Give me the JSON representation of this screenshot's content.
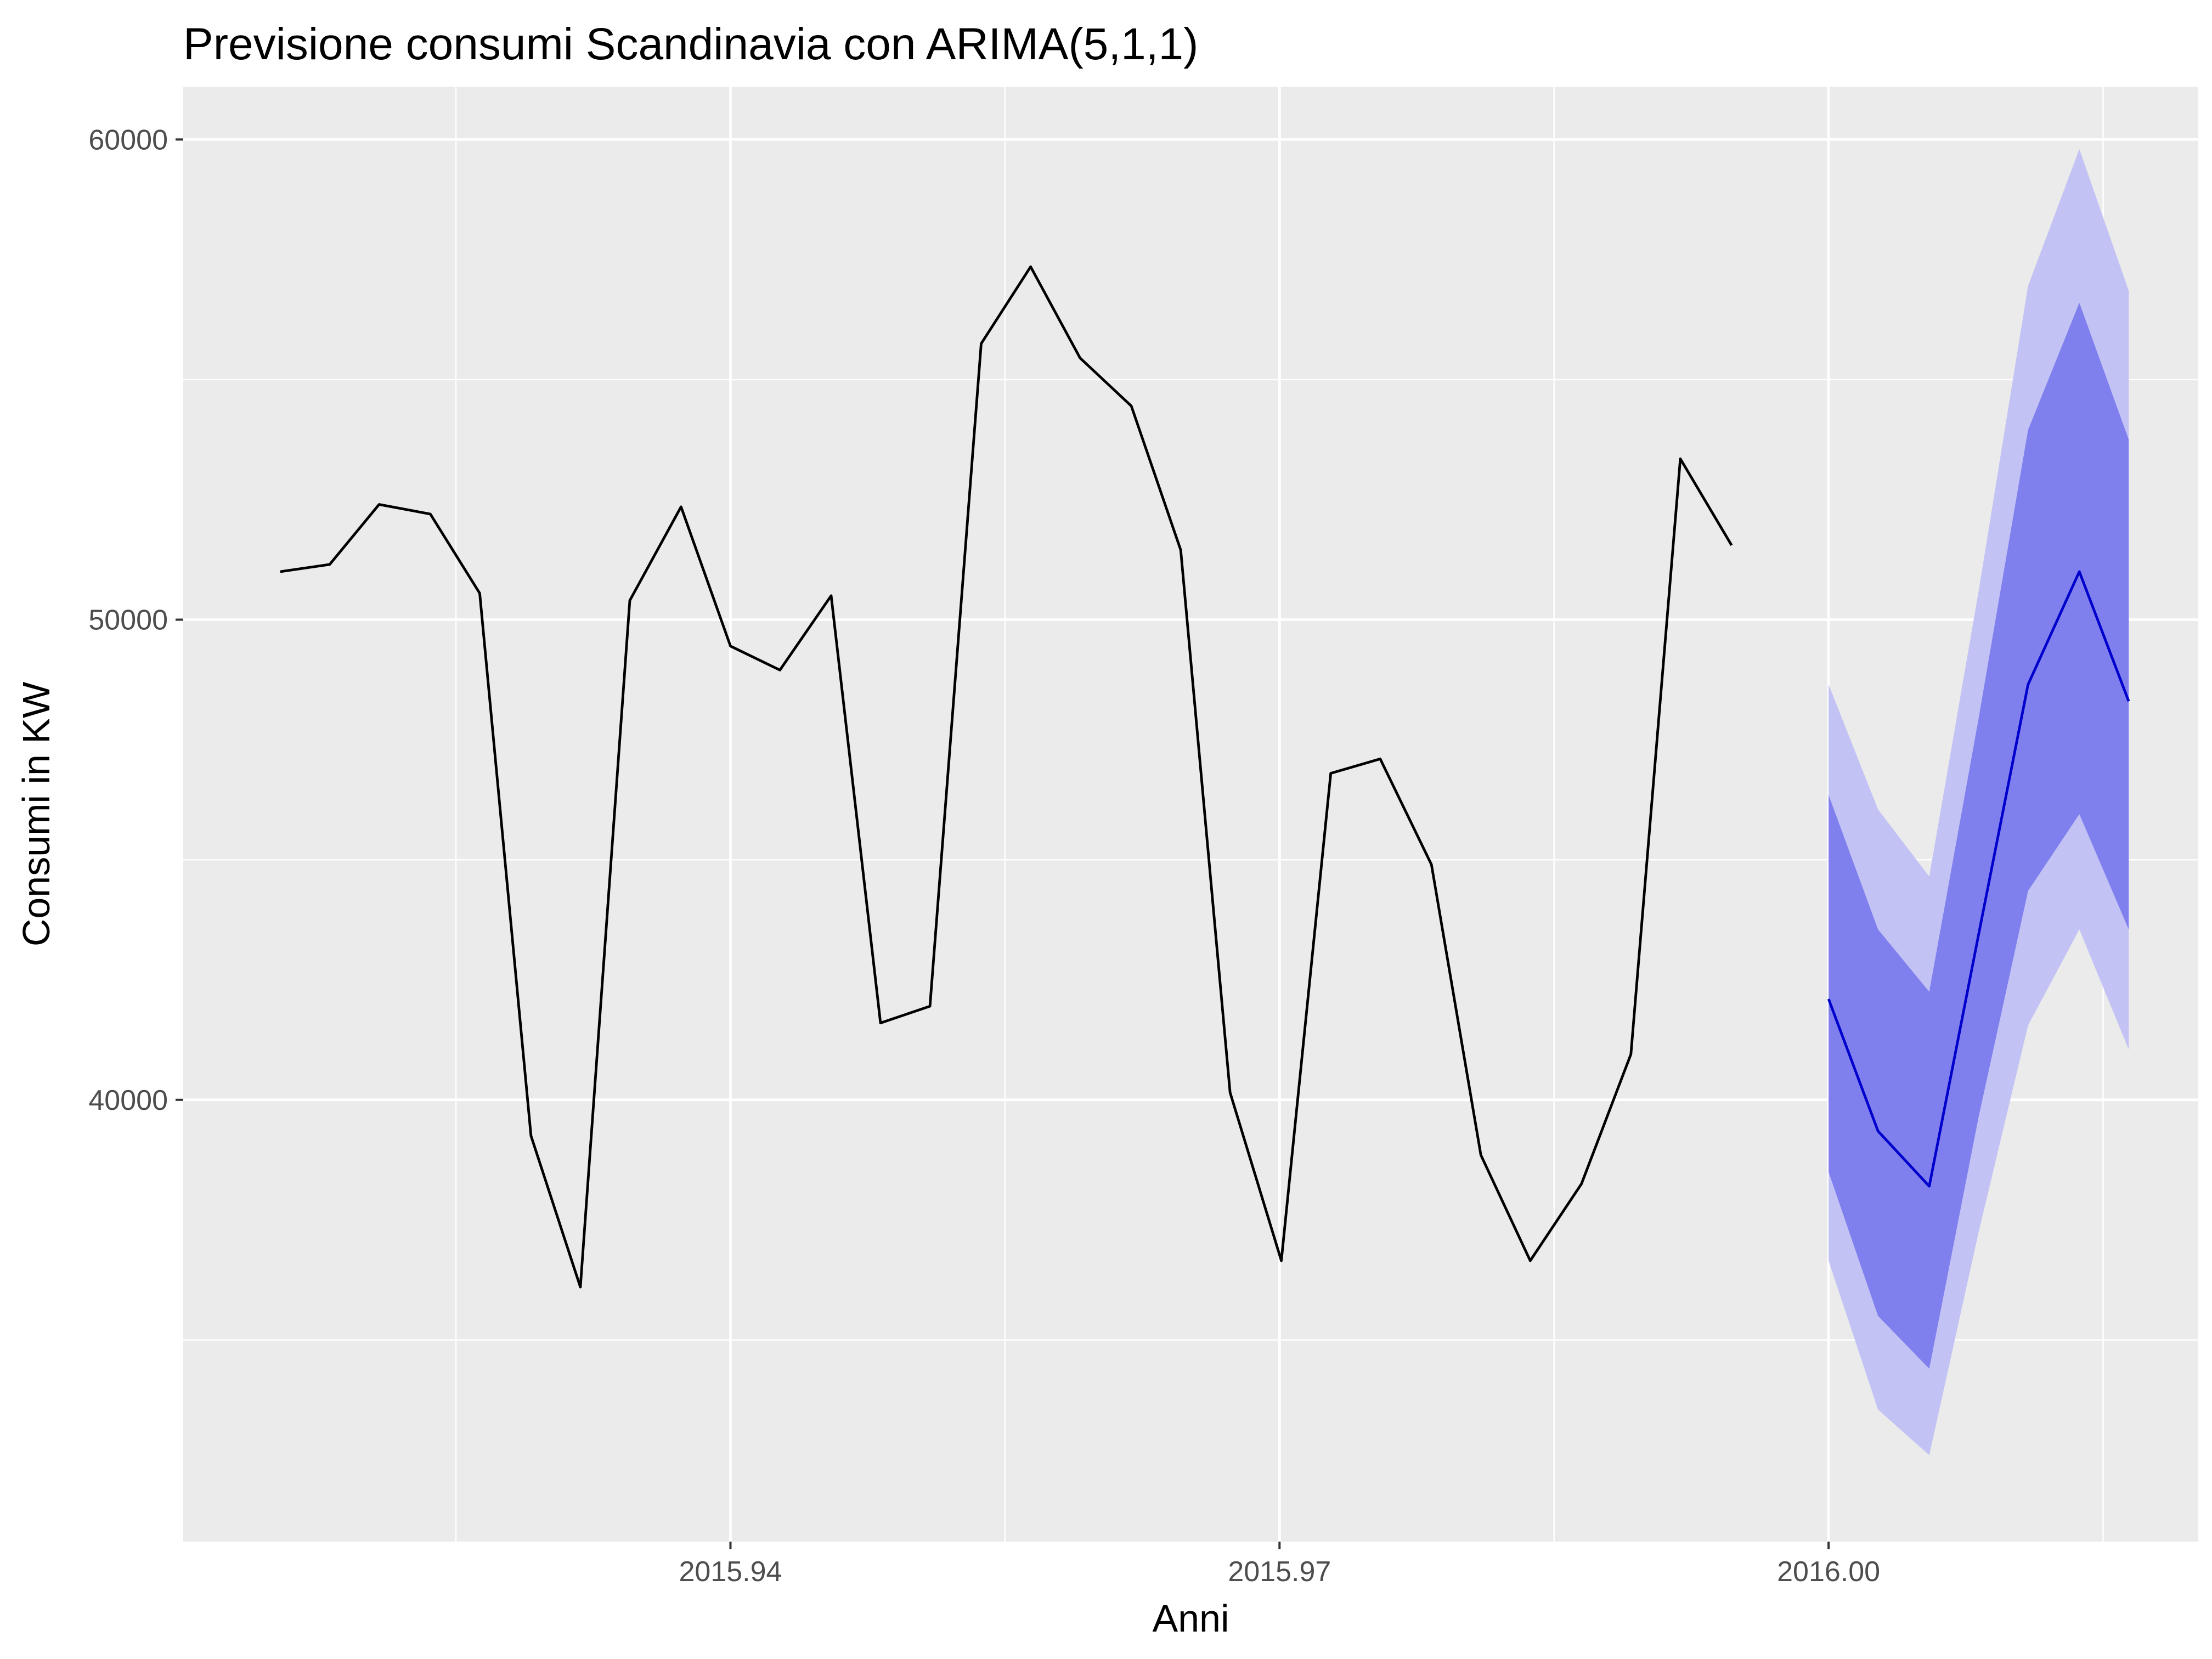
{
  "chart_data": {
    "type": "line",
    "title": "Previsione consumi Scandinavia con ARIMA(5,1,1)",
    "xlabel": "Anni",
    "ylabel": "Consumi in KW",
    "x_ticks": [
      "2015.94",
      "2015.97",
      "2016.00"
    ],
    "y_ticks": [
      "40000",
      "50000",
      "60000"
    ],
    "xlim": [
      2015.9101,
      2016.0202
    ],
    "ylim": [
      30800,
      61100
    ],
    "grid": true,
    "legend": "none",
    "colors": {
      "panel_background": "#ebebeb",
      "grid": "#ffffff",
      "history_line": "#000000",
      "forecast_line": "#0000cc",
      "interval_80": "#7f7fee",
      "interval_95": "#c2c2f5"
    },
    "series": [
      {
        "x": [
          2015.9154,
          2015.9181,
          2015.9208,
          2015.9236,
          2015.9263,
          2015.9291,
          2015.9318,
          2015.9345,
          2015.9373,
          2015.94,
          2015.9427,
          2015.9455,
          2015.9482,
          2015.9509,
          2015.9537,
          2015.9564,
          2015.9591,
          2015.9619,
          2015.9646,
          2015.9673,
          2015.9701,
          2015.9728,
          2015.9755,
          2015.9783,
          2015.981,
          2015.9837,
          2015.9865,
          2015.9892,
          2015.9919,
          2015.9947
        ],
        "values": [
          51000,
          51150,
          52400,
          52200,
          50550,
          39250,
          36100,
          50400,
          52350,
          49450,
          48950,
          50500,
          41600,
          41950,
          55750,
          57350,
          55450,
          54450,
          51450,
          40150,
          36650,
          46800,
          47100,
          44900,
          38850,
          36650,
          38250,
          40950,
          53350,
          51550
        ]
      },
      {
        "x": [
          2016.0,
          2016.0027,
          2016.0055,
          2016.0082,
          2016.0109,
          2016.0137,
          2016.0164
        ],
        "values": [
          42100,
          39350,
          38200,
          43450,
          48650,
          51000,
          48300
        ],
        "lo80": [
          38500,
          35500,
          34400,
          39650,
          44350,
          45950,
          43550
        ],
        "hi80": [
          46350,
          43550,
          42250,
          47950,
          53950,
          56600,
          53750
        ],
        "lo95": [
          36650,
          33550,
          32600,
          37250,
          41550,
          43550,
          41050
        ],
        "hi95": [
          48650,
          46050,
          44650,
          50600,
          56950,
          59800,
          56850
        ]
      }
    ]
  }
}
